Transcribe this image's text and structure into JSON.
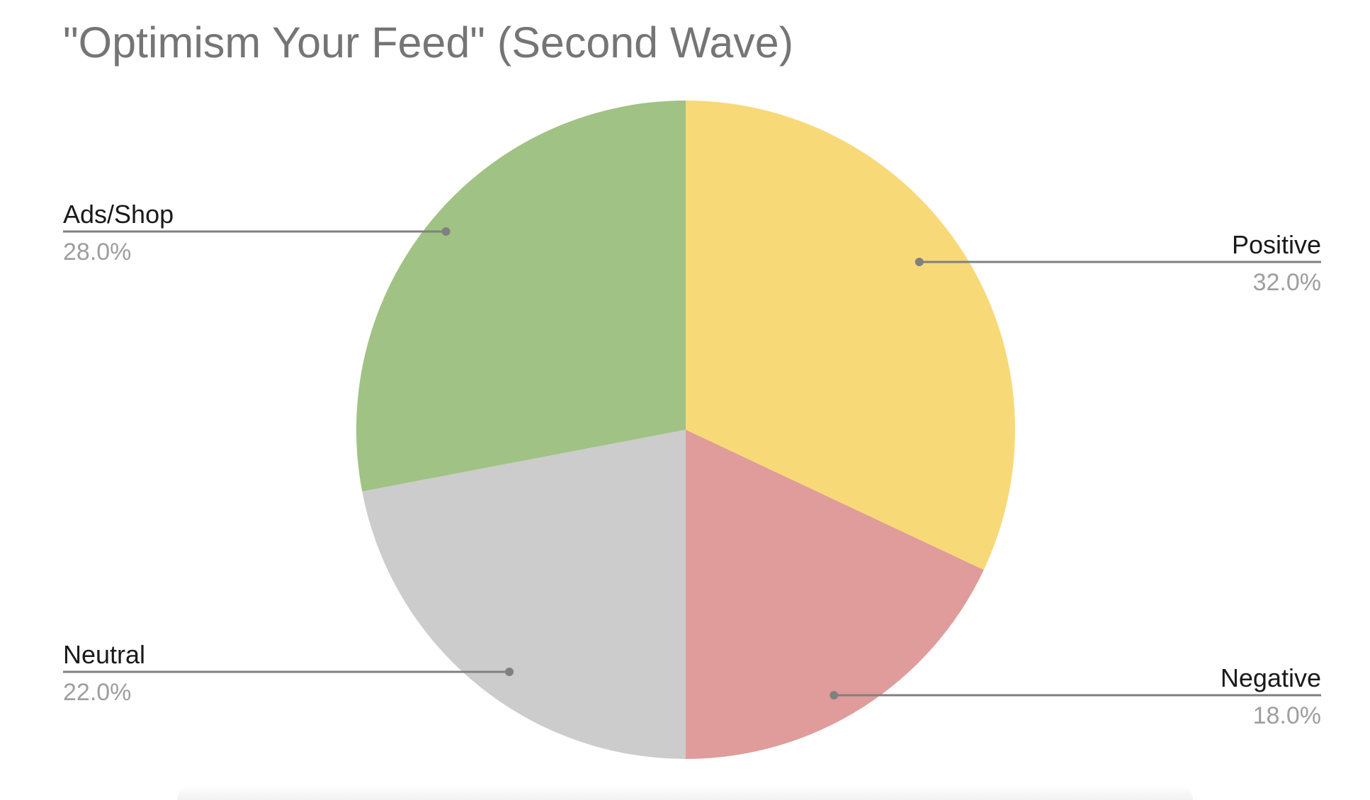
{
  "chart_data": {
    "type": "pie",
    "title": "\"Optimism Your Feed\" (Second Wave)",
    "slices": [
      {
        "label": "Positive",
        "value": 32.0,
        "value_label": "32.0%",
        "color": "#F8D978"
      },
      {
        "label": "Negative",
        "value": 18.0,
        "value_label": "18.0%",
        "color": "#DF9C9A"
      },
      {
        "label": "Neutral",
        "value": 22.0,
        "value_label": "22.0%",
        "color": "#CCCCCC"
      },
      {
        "label": "Ads/Shop",
        "value": 28.0,
        "value_label": "28.0%",
        "color": "#A0C284"
      }
    ],
    "start_angle": "12 o'clock",
    "direction": "clockwise",
    "label_style": "callout lines"
  },
  "colors": {
    "title": "#757575",
    "label": "#1a1a1a",
    "value_label": "#9e9e9e",
    "leader_line": "#808080"
  }
}
